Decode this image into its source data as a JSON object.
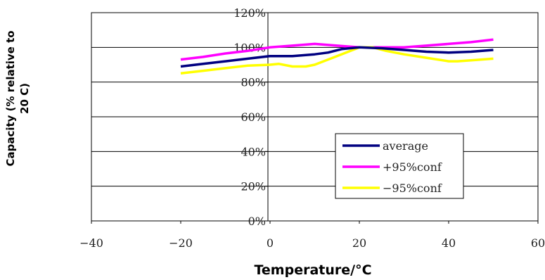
{
  "chart_data": {
    "type": "line",
    "title": "",
    "xlabel": "Temperature/°C",
    "ylabel": [
      "Capacity (% relative to",
      "20 C)"
    ],
    "xlim": [
      -40,
      60
    ],
    "ylim": [
      0,
      120
    ],
    "x_ticks": [
      "−40",
      "−20",
      "0",
      "20",
      "40",
      "60"
    ],
    "y_ticks": [
      "0%",
      "20%",
      "40%",
      "60%",
      "80%",
      "100%",
      "120%"
    ],
    "grid": "horizontal",
    "legend_position": "lower-right",
    "series": [
      {
        "name": "average",
        "color": "#000080",
        "x": [
          -20,
          -15,
          -10,
          -5,
          0,
          5,
          10,
          13,
          16,
          20,
          25,
          30,
          35,
          40,
          45,
          50
        ],
        "y": [
          89,
          90.5,
          92,
          93.5,
          95,
          95,
          96,
          97,
          99,
          100,
          99.5,
          98.5,
          97.5,
          97,
          97.5,
          98.5
        ]
      },
      {
        "name": "+95%conf",
        "color": "#ff00ff",
        "x": [
          -20,
          -15,
          -10,
          -5,
          0,
          5,
          10,
          15,
          20,
          25,
          30,
          35,
          40,
          45,
          50
        ],
        "y": [
          93,
          94.5,
          96.5,
          98,
          100,
          101,
          102,
          101,
          100,
          100,
          100,
          101,
          102,
          103,
          104.5
        ]
      },
      {
        "name": "−95%conf",
        "color": "#ffff00",
        "x": [
          -20,
          -15,
          -10,
          -5,
          0,
          2,
          5,
          8,
          10,
          15,
          20,
          23,
          26,
          30,
          35,
          40,
          42,
          45,
          50
        ],
        "y": [
          85,
          86.5,
          88,
          89.5,
          90,
          90.5,
          89,
          89,
          90,
          95,
          100,
          100,
          98,
          96,
          94,
          92,
          92,
          92.5,
          93.5
        ]
      }
    ]
  }
}
